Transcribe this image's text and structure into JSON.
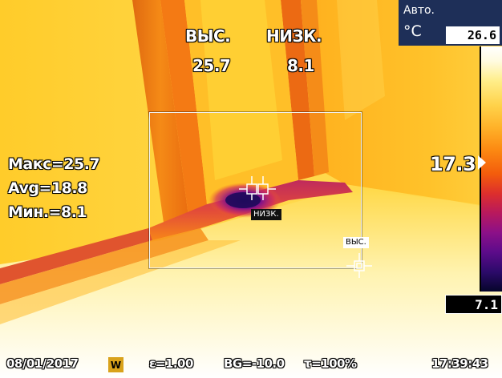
{
  "header": {
    "high_label": "ВЫС.",
    "low_label": "НИЗК.",
    "high_value": "25.7",
    "low_value": "8.1"
  },
  "stats": {
    "max": "Макс=25.7",
    "avg": "Avg=18.8",
    "min": "Мин.=8.1"
  },
  "markers": {
    "low_tag": "НИЗК.",
    "high_tag": "ВЫС."
  },
  "scale": {
    "mode": "Авто.",
    "unit": "°C",
    "max_value": "26.6",
    "min_value": "7.1",
    "level_value": "17.3",
    "palette": "ironbow"
  },
  "footer": {
    "date": "08/01/2017",
    "mode_badge": "W",
    "emissivity": "ε=1.00",
    "background": "BG=-10.0",
    "transmission": "τ=100%",
    "time": "17:39:43"
  },
  "colors": {
    "panel_bg": "#1e2f58",
    "badge": "#d9a21b"
  }
}
